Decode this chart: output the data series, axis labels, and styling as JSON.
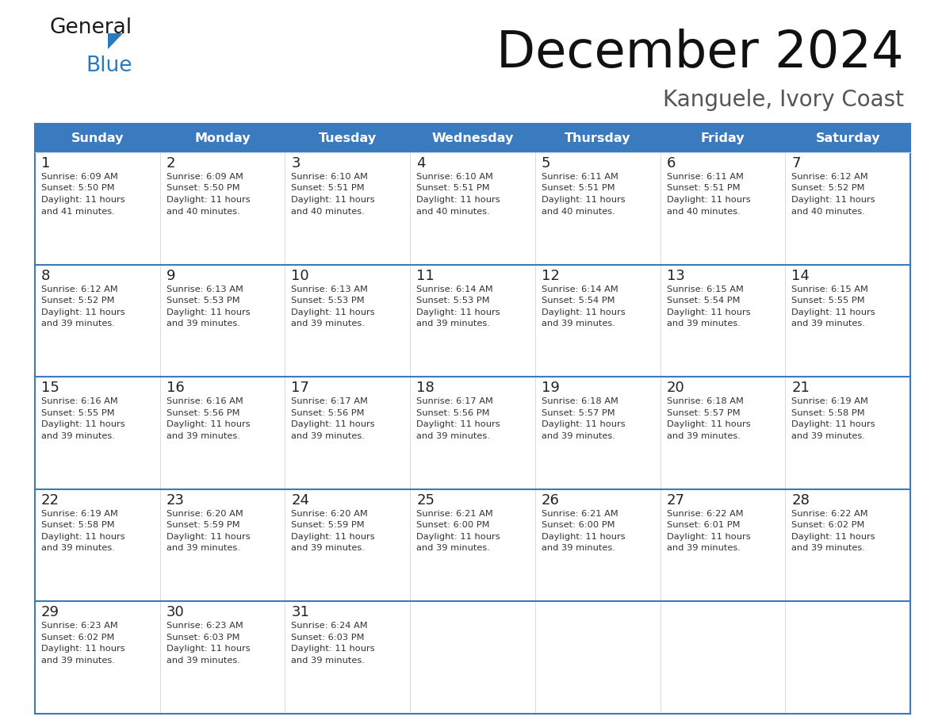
{
  "title": "December 2024",
  "subtitle": "Kanguele, Ivory Coast",
  "header_color": "#3a7abf",
  "header_text_color": "#ffffff",
  "cell_bg_color": "#ffffff",
  "alt_cell_bg_color": "#f0f4f8",
  "text_color": "#333333",
  "border_color": "#3a7abf",
  "separator_color": "#b0c4d8",
  "days_of_week": [
    "Sunday",
    "Monday",
    "Tuesday",
    "Wednesday",
    "Thursday",
    "Friday",
    "Saturday"
  ],
  "calendar_data": [
    [
      {
        "day": 1,
        "sunrise": "6:09 AM",
        "sunset": "5:50 PM",
        "daylight_line1": "Daylight: 11 hours",
        "daylight_line2": "and 41 minutes."
      },
      {
        "day": 2,
        "sunrise": "6:09 AM",
        "sunset": "5:50 PM",
        "daylight_line1": "Daylight: 11 hours",
        "daylight_line2": "and 40 minutes."
      },
      {
        "day": 3,
        "sunrise": "6:10 AM",
        "sunset": "5:51 PM",
        "daylight_line1": "Daylight: 11 hours",
        "daylight_line2": "and 40 minutes."
      },
      {
        "day": 4,
        "sunrise": "6:10 AM",
        "sunset": "5:51 PM",
        "daylight_line1": "Daylight: 11 hours",
        "daylight_line2": "and 40 minutes."
      },
      {
        "day": 5,
        "sunrise": "6:11 AM",
        "sunset": "5:51 PM",
        "daylight_line1": "Daylight: 11 hours",
        "daylight_line2": "and 40 minutes."
      },
      {
        "day": 6,
        "sunrise": "6:11 AM",
        "sunset": "5:51 PM",
        "daylight_line1": "Daylight: 11 hours",
        "daylight_line2": "and 40 minutes."
      },
      {
        "day": 7,
        "sunrise": "6:12 AM",
        "sunset": "5:52 PM",
        "daylight_line1": "Daylight: 11 hours",
        "daylight_line2": "and 40 minutes."
      }
    ],
    [
      {
        "day": 8,
        "sunrise": "6:12 AM",
        "sunset": "5:52 PM",
        "daylight_line1": "Daylight: 11 hours",
        "daylight_line2": "and 39 minutes."
      },
      {
        "day": 9,
        "sunrise": "6:13 AM",
        "sunset": "5:53 PM",
        "daylight_line1": "Daylight: 11 hours",
        "daylight_line2": "and 39 minutes."
      },
      {
        "day": 10,
        "sunrise": "6:13 AM",
        "sunset": "5:53 PM",
        "daylight_line1": "Daylight: 11 hours",
        "daylight_line2": "and 39 minutes."
      },
      {
        "day": 11,
        "sunrise": "6:14 AM",
        "sunset": "5:53 PM",
        "daylight_line1": "Daylight: 11 hours",
        "daylight_line2": "and 39 minutes."
      },
      {
        "day": 12,
        "sunrise": "6:14 AM",
        "sunset": "5:54 PM",
        "daylight_line1": "Daylight: 11 hours",
        "daylight_line2": "and 39 minutes."
      },
      {
        "day": 13,
        "sunrise": "6:15 AM",
        "sunset": "5:54 PM",
        "daylight_line1": "Daylight: 11 hours",
        "daylight_line2": "and 39 minutes."
      },
      {
        "day": 14,
        "sunrise": "6:15 AM",
        "sunset": "5:55 PM",
        "daylight_line1": "Daylight: 11 hours",
        "daylight_line2": "and 39 minutes."
      }
    ],
    [
      {
        "day": 15,
        "sunrise": "6:16 AM",
        "sunset": "5:55 PM",
        "daylight_line1": "Daylight: 11 hours",
        "daylight_line2": "and 39 minutes."
      },
      {
        "day": 16,
        "sunrise": "6:16 AM",
        "sunset": "5:56 PM",
        "daylight_line1": "Daylight: 11 hours",
        "daylight_line2": "and 39 minutes."
      },
      {
        "day": 17,
        "sunrise": "6:17 AM",
        "sunset": "5:56 PM",
        "daylight_line1": "Daylight: 11 hours",
        "daylight_line2": "and 39 minutes."
      },
      {
        "day": 18,
        "sunrise": "6:17 AM",
        "sunset": "5:56 PM",
        "daylight_line1": "Daylight: 11 hours",
        "daylight_line2": "and 39 minutes."
      },
      {
        "day": 19,
        "sunrise": "6:18 AM",
        "sunset": "5:57 PM",
        "daylight_line1": "Daylight: 11 hours",
        "daylight_line2": "and 39 minutes."
      },
      {
        "day": 20,
        "sunrise": "6:18 AM",
        "sunset": "5:57 PM",
        "daylight_line1": "Daylight: 11 hours",
        "daylight_line2": "and 39 minutes."
      },
      {
        "day": 21,
        "sunrise": "6:19 AM",
        "sunset": "5:58 PM",
        "daylight_line1": "Daylight: 11 hours",
        "daylight_line2": "and 39 minutes."
      }
    ],
    [
      {
        "day": 22,
        "sunrise": "6:19 AM",
        "sunset": "5:58 PM",
        "daylight_line1": "Daylight: 11 hours",
        "daylight_line2": "and 39 minutes."
      },
      {
        "day": 23,
        "sunrise": "6:20 AM",
        "sunset": "5:59 PM",
        "daylight_line1": "Daylight: 11 hours",
        "daylight_line2": "and 39 minutes."
      },
      {
        "day": 24,
        "sunrise": "6:20 AM",
        "sunset": "5:59 PM",
        "daylight_line1": "Daylight: 11 hours",
        "daylight_line2": "and 39 minutes."
      },
      {
        "day": 25,
        "sunrise": "6:21 AM",
        "sunset": "6:00 PM",
        "daylight_line1": "Daylight: 11 hours",
        "daylight_line2": "and 39 minutes."
      },
      {
        "day": 26,
        "sunrise": "6:21 AM",
        "sunset": "6:00 PM",
        "daylight_line1": "Daylight: 11 hours",
        "daylight_line2": "and 39 minutes."
      },
      {
        "day": 27,
        "sunrise": "6:22 AM",
        "sunset": "6:01 PM",
        "daylight_line1": "Daylight: 11 hours",
        "daylight_line2": "and 39 minutes."
      },
      {
        "day": 28,
        "sunrise": "6:22 AM",
        "sunset": "6:02 PM",
        "daylight_line1": "Daylight: 11 hours",
        "daylight_line2": "and 39 minutes."
      }
    ],
    [
      {
        "day": 29,
        "sunrise": "6:23 AM",
        "sunset": "6:02 PM",
        "daylight_line1": "Daylight: 11 hours",
        "daylight_line2": "and 39 minutes."
      },
      {
        "day": 30,
        "sunrise": "6:23 AM",
        "sunset": "6:03 PM",
        "daylight_line1": "Daylight: 11 hours",
        "daylight_line2": "and 39 minutes."
      },
      {
        "day": 31,
        "sunrise": "6:24 AM",
        "sunset": "6:03 PM",
        "daylight_line1": "Daylight: 11 hours",
        "daylight_line2": "and 39 minutes."
      },
      null,
      null,
      null,
      null
    ]
  ]
}
